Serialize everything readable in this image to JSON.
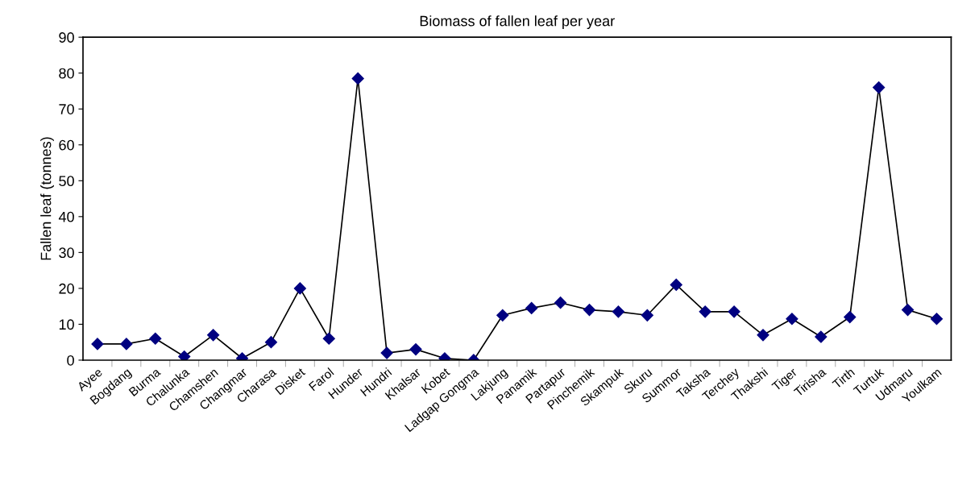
{
  "chart_data": {
    "type": "line",
    "title": "Biomass of fallen leaf per year",
    "ylabel": "Fallen leaf (tonnes)",
    "categories": [
      "Ayee",
      "Bogdang",
      "Burma",
      "Chalunka",
      "Chamshen",
      "Changmar",
      "Charasa",
      "Disket",
      "Farol",
      "Hunder",
      "Hundri",
      "Khalsar",
      "Kobet",
      "Ladgap Gongma",
      "Lakjung",
      "Panamik",
      "Partapur",
      "Pinchemik",
      "Skampuk",
      "Skuru",
      "Summor",
      "Taksha",
      "Terchey",
      "Thakshi",
      "Tiger",
      "Tirisha",
      "Tirth",
      "Turtuk",
      "Udmaru",
      "Youlkam"
    ],
    "series": [
      {
        "color": "#000080",
        "values": [
          4.5,
          4.5,
          6,
          1,
          7,
          0.5,
          5,
          20,
          6,
          78.5,
          2,
          3,
          0.5,
          0,
          12.5,
          14.5,
          16,
          14,
          13.5,
          12.5,
          21,
          13.5,
          13.5,
          7,
          11.5,
          6.5,
          12,
          76,
          14,
          11.5
        ]
      }
    ],
    "ylim": [
      0,
      90
    ],
    "yticks": [
      0,
      10,
      20,
      30,
      40,
      50,
      60,
      70,
      80,
      90
    ],
    "grid": false,
    "legend": false,
    "marker": "diamond",
    "line_style": "solid"
  }
}
